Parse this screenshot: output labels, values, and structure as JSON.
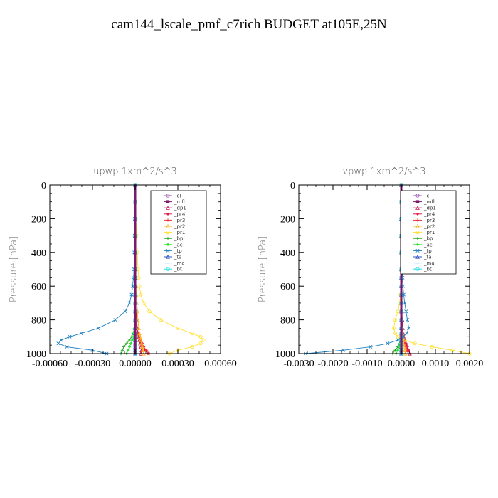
{
  "figure_title": "cam144_lscale_pmf_c7rich  BUDGET at105E,25N",
  "legend_entries": [
    "_cl",
    "_mfl",
    "_dp1",
    "_pr4",
    "_pr3",
    "_pr2",
    "_pr1",
    "_bp",
    "_ac",
    "_tp",
    "_ta",
    "_ma",
    "_bt"
  ],
  "series_colors": {
    "_cl": "#9b59b6",
    "_mfl": "#7a1a6e",
    "_dp1": "#c0185a",
    "_pr4": "#e0204a",
    "_pr3": "#ee3030",
    "_pr2": "#ffb020",
    "_pr1": "#ffe030",
    "_bp": "#20a020",
    "_ac": "#30e030",
    "_tp": "#2080c0",
    "_ta": "#3050c0",
    "_ma": "#30b0e0",
    "_bt": "#20e0e0"
  },
  "chart_data": [
    {
      "type": "line",
      "title": "upwp   1xm^2/s^3",
      "ylabel": "Pressure  [hPa]",
      "xlim": [
        -0.0006,
        0.0006
      ],
      "ylim": [
        1000,
        0
      ],
      "x_ticks": [
        -0.0006,
        -0.0003,
        0.0,
        0.0003,
        0.0006
      ],
      "x_tick_labels": [
        "-0.00060",
        "-0.00030",
        "0.00000",
        "0.00030",
        "0.00060"
      ],
      "y_ticks": [
        0,
        200,
        400,
        600,
        800,
        1000
      ],
      "y_tick_labels": [
        "0",
        "200",
        "400",
        "600",
        "800",
        "1000"
      ],
      "pressure": [
        0,
        100,
        200,
        300,
        400,
        500,
        550,
        600,
        650,
        700,
        750,
        800,
        850,
        880,
        900,
        920,
        940,
        960,
        980,
        1000
      ],
      "series": [
        {
          "name": "_cl",
          "values": [
            0,
            0,
            0,
            0,
            0,
            0,
            0,
            0,
            0,
            0,
            0,
            0,
            0,
            0,
            0,
            0,
            0,
            0,
            0,
            0
          ]
        },
        {
          "name": "_mfl",
          "values": [
            0,
            0,
            0,
            0,
            0,
            0,
            0,
            0,
            0,
            0,
            0,
            0,
            0,
            0,
            0,
            0,
            0,
            0,
            0,
            0
          ]
        },
        {
          "name": "_dp1",
          "values": [
            0,
            0,
            0,
            0,
            0,
            0,
            0,
            0,
            2e-06,
            4e-06,
            6e-06,
            8e-06,
            1.2e-05,
            1.8e-05,
            2.5e-05,
            3e-05,
            3.5e-05,
            4e-05,
            4.5e-05,
            4e-05
          ]
        },
        {
          "name": "_pr4",
          "values": [
            0,
            0,
            0,
            0,
            0,
            0,
            0,
            1e-06,
            2e-06,
            4e-06,
            6e-06,
            1e-05,
            1.6e-05,
            2.2e-05,
            3e-05,
            4e-05,
            5e-05,
            6e-05,
            7e-05,
            9e-05
          ]
        },
        {
          "name": "_pr3",
          "values": [
            0,
            0,
            0,
            0,
            0,
            0,
            0,
            0,
            0,
            0,
            2e-06,
            5e-06,
            1e-05,
            1.5e-05,
            2.2e-05,
            3e-05,
            4.5e-05,
            6e-05,
            8e-05,
            0.0001
          ]
        },
        {
          "name": "_pr2",
          "values": [
            0,
            0,
            0,
            1e-06,
            2e-06,
            3e-06,
            4e-06,
            6e-06,
            8e-06,
            1.2e-05,
            1.6e-05,
            2e-05,
            2.5e-05,
            3e-05,
            3.5e-05,
            4e-05,
            4.5e-05,
            5e-05,
            5.5e-05,
            6e-05
          ]
        },
        {
          "name": "_pr1",
          "values": [
            0,
            0,
            5e-06,
            1e-05,
            1.5e-05,
            2e-05,
            2.5e-05,
            3e-05,
            4e-05,
            6e-05,
            0.0001,
            0.00018,
            0.0003,
            0.0004,
            0.00046,
            0.00048,
            0.00046,
            0.0004,
            0.0003,
            0.00024
          ]
        },
        {
          "name": "_bp",
          "values": [
            0,
            0,
            0,
            0,
            0,
            0,
            0,
            0,
            0,
            0,
            0,
            0,
            -5e-06,
            -1.5e-05,
            -2.5e-05,
            -4e-05,
            -6e-05,
            -8e-05,
            -9e-05,
            -0.0001
          ]
        },
        {
          "name": "_ac",
          "values": [
            0,
            0,
            0,
            0,
            0,
            0,
            0,
            0,
            0,
            0,
            0,
            0,
            -3e-06,
            -8e-06,
            -1.2e-05,
            -2e-05,
            -3e-05,
            -4e-05,
            -5e-05,
            -6e-05
          ]
        },
        {
          "name": "_tp",
          "values": [
            0,
            0,
            -2e-06,
            -4e-06,
            -6e-06,
            -8e-06,
            -1.2e-05,
            -1.8e-05,
            -2.5e-05,
            -4e-05,
            -7e-05,
            -0.00014,
            -0.00026,
            -0.00038,
            -0.00046,
            -0.00052,
            -0.00054,
            -0.00048,
            -0.0003,
            -0.0002
          ]
        },
        {
          "name": "_ta",
          "values": [
            0,
            0,
            0,
            0,
            0,
            0,
            0,
            0,
            0,
            0,
            0,
            0,
            0,
            0,
            0,
            0,
            0,
            0,
            0,
            0
          ]
        },
        {
          "name": "_ma",
          "values": [
            0,
            0,
            0,
            0,
            0,
            0,
            0,
            0,
            0,
            0,
            0,
            0,
            0,
            0,
            0,
            0,
            0,
            0,
            0,
            0
          ]
        },
        {
          "name": "_bt",
          "values": [
            0,
            0,
            0,
            0,
            0,
            0,
            0,
            0,
            0,
            0,
            0,
            0,
            0,
            0,
            0,
            0,
            0,
            0,
            0,
            0
          ]
        }
      ]
    },
    {
      "type": "line",
      "title": "vpwp   1xm^2/s^3",
      "ylabel": "Pressure  [hPa]",
      "xlim": [
        -0.003,
        0.002
      ],
      "ylim": [
        1000,
        0
      ],
      "x_ticks": [
        -0.003,
        -0.002,
        -0.001,
        0.0,
        0.001,
        0.002
      ],
      "x_tick_labels": [
        "-0.0030",
        "-0.0020",
        "-0.0010",
        "0.0000",
        "0.0010",
        "0.0020"
      ],
      "y_ticks": [
        0,
        200,
        400,
        600,
        800,
        1000
      ],
      "y_tick_labels": [
        "0",
        "200",
        "400",
        "600",
        "800",
        "1000"
      ],
      "pressure": [
        0,
        100,
        200,
        300,
        400,
        500,
        550,
        600,
        650,
        700,
        750,
        800,
        850,
        880,
        900,
        920,
        940,
        960,
        980,
        1000
      ],
      "series": [
        {
          "name": "_cl",
          "values": [
            0,
            0,
            0,
            0,
            0,
            0,
            0,
            0,
            0,
            0,
            0,
            0,
            0,
            0,
            0,
            0,
            0,
            0,
            0,
            0
          ]
        },
        {
          "name": "_mfl",
          "values": [
            0,
            0,
            0,
            0,
            0,
            0,
            0,
            0,
            0,
            0,
            0,
            0,
            0,
            0,
            0,
            0,
            0,
            0,
            0,
            0
          ]
        },
        {
          "name": "_dp1",
          "values": [
            0,
            0,
            0,
            0,
            0,
            0,
            0,
            0,
            0,
            1e-05,
            2e-05,
            3e-05,
            4e-05,
            5e-05,
            7e-05,
            0.0001,
            0.00013,
            0.00016,
            0.0002,
            0.00025
          ]
        },
        {
          "name": "_pr4",
          "values": [
            0,
            0,
            0,
            0,
            0,
            0,
            0,
            0,
            0,
            0,
            1e-05,
            2e-05,
            3e-05,
            5e-05,
            7e-05,
            0.0001,
            0.00014,
            0.00018,
            0.00022,
            0.00026
          ]
        },
        {
          "name": "_pr3",
          "values": [
            0,
            0,
            0,
            0,
            0,
            0,
            0,
            0,
            0,
            0,
            0,
            1e-05,
            2e-05,
            3e-05,
            5e-05,
            7e-05,
            0.0001,
            0.00013,
            0.00017,
            0.0002
          ]
        },
        {
          "name": "_pr2",
          "values": [
            0,
            0,
            0,
            0,
            0,
            0,
            0,
            0,
            0,
            0,
            0,
            1e-05,
            2e-05,
            3e-05,
            4e-05,
            5e-05,
            6e-05,
            8e-05,
            0.0001,
            0.00012
          ]
        },
        {
          "name": "_pr1",
          "values": [
            0,
            0,
            0,
            0,
            0,
            0,
            0,
            0,
            -2e-05,
            -5e-05,
            -0.0001,
            -0.00018,
            -0.00022,
            -0.00018,
            -0.0001,
            0.0001,
            0.0004,
            0.0009,
            0.0015,
            0.002
          ]
        },
        {
          "name": "_bp",
          "values": [
            0,
            0,
            0,
            0,
            0,
            0,
            0,
            0,
            0,
            0,
            0,
            0,
            0,
            0,
            0,
            -2e-05,
            -5e-05,
            -0.0001,
            -0.00018,
            -0.00025
          ]
        },
        {
          "name": "_ac",
          "values": [
            0,
            0,
            0,
            0,
            0,
            0,
            0,
            0,
            0,
            0,
            0,
            0,
            0,
            0,
            0,
            -1e-05,
            -3e-05,
            -6e-05,
            -0.0001,
            -0.00015
          ]
        },
        {
          "name": "_tp",
          "values": [
            0,
            0,
            5e-06,
            1e-05,
            2e-05,
            3e-05,
            4e-05,
            5e-05,
            7e-05,
            0.0001,
            0.00014,
            0.00018,
            0.00022,
            0.00016,
            5e-05,
            -0.0001,
            -0.0004,
            -0.0009,
            -0.0017,
            -0.0028
          ]
        },
        {
          "name": "_ta",
          "values": [
            0,
            0,
            0,
            0,
            0,
            0,
            0,
            0,
            0,
            0,
            0,
            0,
            0,
            0,
            0,
            0,
            0,
            0,
            0,
            0
          ]
        },
        {
          "name": "_ma",
          "values": [
            0,
            0,
            0,
            0,
            0,
            0,
            0,
            0,
            0,
            0,
            0,
            0,
            0,
            0,
            0,
            0,
            0,
            0,
            0,
            0
          ]
        },
        {
          "name": "_bt",
          "values": [
            0,
            0,
            0,
            0,
            0,
            0,
            0,
            0,
            0,
            0,
            0,
            0,
            0,
            0,
            0,
            0,
            0,
            0,
            0,
            0
          ]
        }
      ]
    }
  ]
}
